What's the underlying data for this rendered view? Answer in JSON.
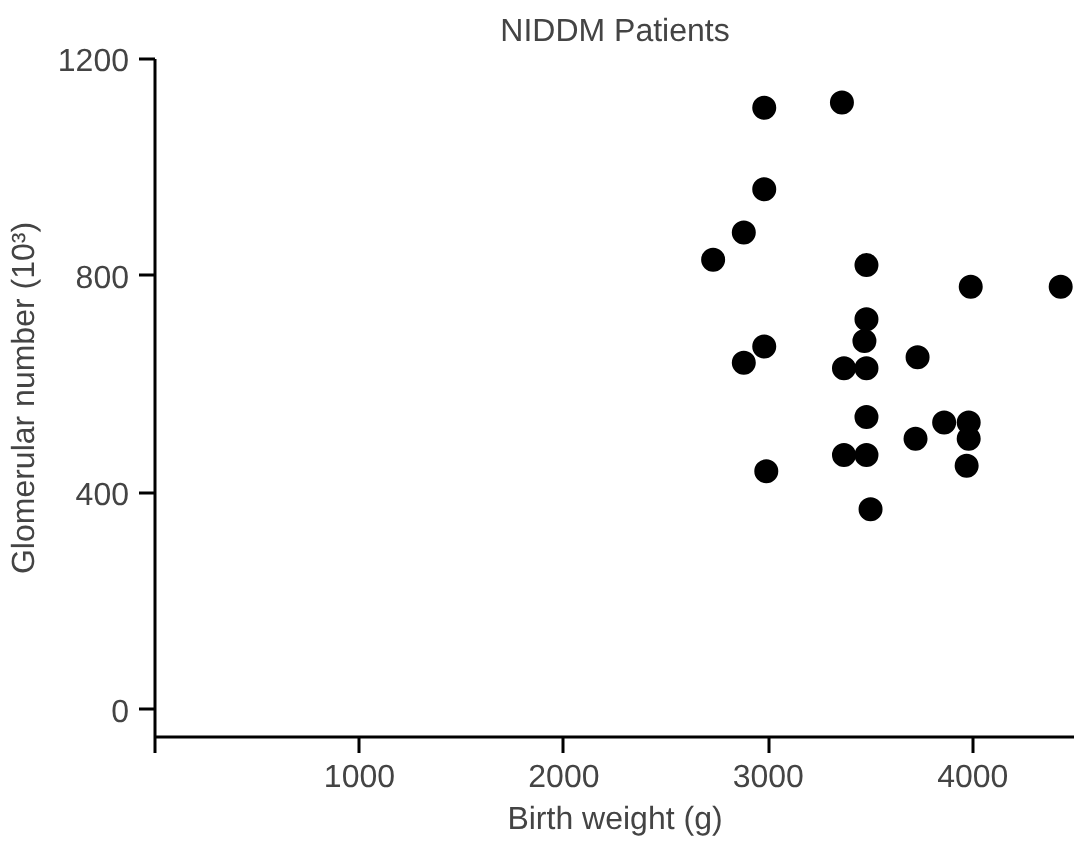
{
  "chart_data": {
    "type": "scatter",
    "title": "NIDDM Patients",
    "xlabel": "Birth weight (g)",
    "ylabel": "Glomerular number (10³)",
    "x": [
      2980,
      3360,
      2980,
      2880,
      2730,
      3480,
      3990,
      4430,
      3480,
      3470,
      2980,
      2880,
      3370,
      3480,
      3730,
      3480,
      3860,
      3980,
      3720,
      3980,
      3370,
      3480,
      3970,
      2990,
      3500
    ],
    "values": [
      1110,
      1120,
      960,
      880,
      830,
      820,
      780,
      780,
      720,
      680,
      670,
      640,
      630,
      630,
      650,
      540,
      530,
      530,
      500,
      500,
      470,
      470,
      450,
      440,
      370
    ],
    "color": "#000000",
    "marker": "circle",
    "xlim": [
      0,
      4500
    ],
    "ylim": [
      -50,
      1200
    ],
    "xticks": [
      {
        "value": 0,
        "label": null
      },
      1000,
      2000,
      3000,
      4000
    ],
    "yticks": [
      0,
      400,
      800,
      1200
    ],
    "grid": false
  }
}
